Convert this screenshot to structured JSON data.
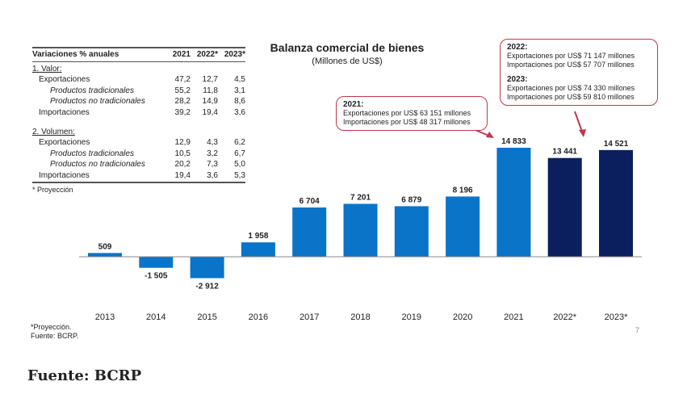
{
  "chart_data": {
    "type": "bar",
    "title": "Balanza comercial de bienes",
    "subtitle": "(Millones de US$)",
    "categories": [
      "2013",
      "2014",
      "2015",
      "2016",
      "2017",
      "2018",
      "2019",
      "2020",
      "2021",
      "2022*",
      "2023*"
    ],
    "values": [
      509,
      -1505,
      -2912,
      1958,
      6704,
      7201,
      6879,
      8196,
      14833,
      13441,
      14521
    ],
    "value_labels": [
      "509",
      "-1 505",
      "-2 912",
      "1 958",
      "6 704",
      "7 201",
      "6 879",
      "8 196",
      "14 833",
      "13 441",
      "14 521"
    ],
    "projected": [
      false,
      false,
      false,
      false,
      false,
      false,
      false,
      false,
      false,
      true,
      true
    ],
    "colors": {
      "actual": "#0a74c9",
      "projection": "#0b1f5e",
      "callout": "#c0394b"
    },
    "grid": false
  },
  "table": {
    "header": [
      "Variaciones % anuales",
      "2021",
      "2022*",
      "2023*"
    ],
    "sections": [
      {
        "title": "1. Valor:",
        "rows": [
          {
            "label": "Exportaciones",
            "level": 1,
            "values": [
              "47,2",
              "12,7",
              "4,5"
            ]
          },
          {
            "label": "Productos tradicionales",
            "level": 2,
            "values": [
              "55,2",
              "11,8",
              "3,1"
            ]
          },
          {
            "label": "Productos no tradicionales",
            "level": 2,
            "values": [
              "28,2",
              "14,9",
              "8,6"
            ]
          },
          {
            "label": "Importaciones",
            "level": 1,
            "values": [
              "39,2",
              "19,4",
              "3,6"
            ]
          }
        ]
      },
      {
        "title": "2. Volumen:",
        "rows": [
          {
            "label": "Exportaciones",
            "level": 1,
            "values": [
              "12,9",
              "4,3",
              "6,2"
            ]
          },
          {
            "label": "Productos tradicionales",
            "level": 2,
            "values": [
              "10,5",
              "3,2",
              "6,7"
            ]
          },
          {
            "label": "Productos no tradicionales",
            "level": 2,
            "values": [
              "20,2",
              "7,3",
              "5,0"
            ]
          },
          {
            "label": "Importaciones",
            "level": 1,
            "values": [
              "19,4",
              "3,6",
              "5,3"
            ]
          }
        ]
      }
    ],
    "note": "* Proyección"
  },
  "callouts": {
    "c2021": {
      "year": "2021:",
      "lines": [
        "Exportaciones por US$ 63 151 millones",
        "Importaciones por US$ 48 317  millones"
      ]
    },
    "c2022": {
      "year": "2022:",
      "lines": [
        "Exportaciones por US$ 71 147 millones",
        "Importaciones por US$ 57 707 millones"
      ]
    },
    "c2023": {
      "year": "2023:",
      "lines": [
        "Exportaciones por US$ 74 330 millones",
        "Importaciones por US$ 59 810 millones"
      ]
    }
  },
  "footnote": [
    "*Proyección.",
    "Fuente: BCRP."
  ],
  "page_number": "7",
  "source": "Fuente: BCRP"
}
